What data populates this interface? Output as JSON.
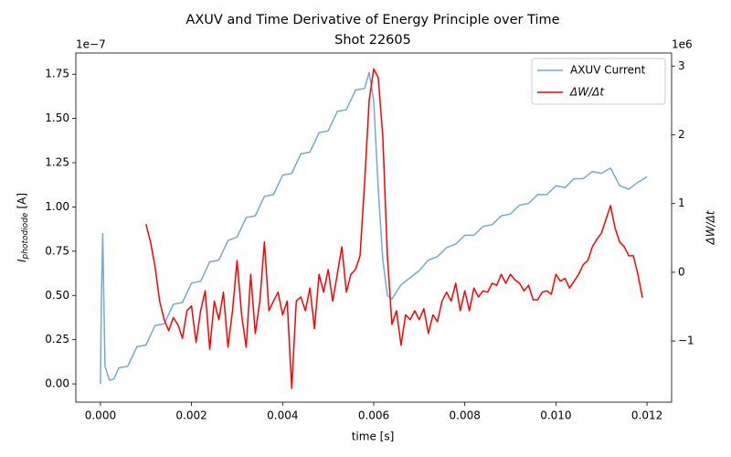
{
  "chart_data": {
    "type": "line",
    "title": "AXUV and Time Derivative of Energy Principle over Time",
    "subtitle": "Shot 22605",
    "xlabel": "time [s]",
    "ylabel": {
      "symbol": "I",
      "subscript": "photodiode",
      "unit": "[A]"
    },
    "y2label": "ΔW/Δt",
    "y_offset_label": "1e−7",
    "y2_offset_label": "1e6",
    "legend": "upper right",
    "xlim": [
      -0.00054,
      0.01254
    ],
    "xticks": [
      {
        "value": 0,
        "label": "0.000"
      },
      {
        "value": 0.002,
        "label": "0.002"
      },
      {
        "value": 0.004,
        "label": "0.004"
      },
      {
        "value": 0.006,
        "label": "0.006"
      },
      {
        "value": 0.008,
        "label": "0.008"
      },
      {
        "value": 0.01,
        "label": "0.010"
      },
      {
        "value": 0.012,
        "label": "0.012"
      }
    ],
    "ylim": [
      -0.103,
      1.87
    ],
    "yticks": [
      {
        "value": 0,
        "label": "0.00"
      },
      0.25,
      {
        "value": 0.5,
        "label": "0.50"
      },
      0.75,
      {
        "value": 1,
        "label": "1.00"
      },
      1.25,
      {
        "value": 1.5,
        "label": "1.50"
      },
      1.75
    ],
    "y2lim": [
      -1.89,
      3.19
    ],
    "y2ticks": [
      {
        "value": -1,
        "label": "−1"
      },
      0,
      1,
      2,
      3
    ],
    "series": [
      {
        "name": "AXUV Current",
        "color": "#73a9d4",
        "x": [
          0,
          2e-05,
          5e-05,
          0.0001,
          0.0002,
          0.0003,
          0.0004,
          0.0006,
          0.0008,
          0.001,
          0.0012,
          0.0014,
          0.0016,
          0.0018,
          0.002,
          0.0022,
          0.0024,
          0.0026,
          0.0028,
          0.003,
          0.0032,
          0.0034,
          0.0036,
          0.0038,
          0.004,
          0.0042,
          0.0044,
          0.0046,
          0.0048,
          0.005,
          0.0052,
          0.0054,
          0.0056,
          0.0058,
          0.0059,
          0.006,
          0.0061,
          0.0062,
          0.0063,
          0.0064,
          0.0066,
          0.0068,
          0.007,
          0.0072,
          0.0074,
          0.0076,
          0.0078,
          0.008,
          0.0082,
          0.0084,
          0.0086,
          0.0088,
          0.009,
          0.0092,
          0.0094,
          0.0096,
          0.0098,
          0.01,
          0.0102,
          0.0104,
          0.0106,
          0.0108,
          0.011,
          0.0112,
          0.0114,
          0.0116,
          0.0118,
          0.012
        ],
        "values": [
          0.0,
          0.47,
          0.85,
          0.1,
          0.02,
          0.03,
          0.09,
          0.1,
          0.21,
          0.22,
          0.33,
          0.34,
          0.45,
          0.46,
          0.57,
          0.58,
          0.69,
          0.7,
          0.81,
          0.83,
          0.94,
          0.95,
          1.06,
          1.07,
          1.18,
          1.19,
          1.3,
          1.31,
          1.42,
          1.43,
          1.54,
          1.55,
          1.66,
          1.67,
          1.76,
          1.6,
          1.1,
          0.7,
          0.5,
          0.48,
          0.56,
          0.6,
          0.64,
          0.7,
          0.72,
          0.77,
          0.79,
          0.84,
          0.84,
          0.89,
          0.9,
          0.95,
          0.96,
          1.01,
          1.02,
          1.07,
          1.07,
          1.12,
          1.11,
          1.16,
          1.16,
          1.2,
          1.19,
          1.22,
          1.12,
          1.1,
          1.14,
          1.17
        ]
      },
      {
        "name": "ΔW/Δt",
        "color": "#ff0000",
        "axis": "y2",
        "x": [
          0.001,
          0.0011,
          0.0012,
          0.0013,
          0.0014,
          0.0015,
          0.0016,
          0.0017,
          0.0018,
          0.0019,
          0.002,
          0.0021,
          0.0022,
          0.0023,
          0.0024,
          0.0025,
          0.0026,
          0.0027,
          0.0028,
          0.0029,
          0.003,
          0.0031,
          0.0032,
          0.0033,
          0.0034,
          0.0035,
          0.0036,
          0.0037,
          0.0038,
          0.0039,
          0.004,
          0.0041,
          0.0042,
          0.0043,
          0.0044,
          0.0045,
          0.0046,
          0.0047,
          0.0048,
          0.0049,
          0.005,
          0.0051,
          0.0052,
          0.0053,
          0.0054,
          0.0055,
          0.0056,
          0.0057,
          0.0058,
          0.0059,
          0.006,
          0.0061,
          0.0062,
          0.0063,
          0.0064,
          0.0065,
          0.0066,
          0.0067,
          0.0068,
          0.0069,
          0.007,
          0.0071,
          0.0072,
          0.0073,
          0.0074,
          0.0075,
          0.0076,
          0.0077,
          0.0078,
          0.0079,
          0.008,
          0.0081,
          0.0082,
          0.0083,
          0.0084,
          0.0085,
          0.0086,
          0.0087,
          0.0088,
          0.0089,
          0.009,
          0.0091,
          0.0092,
          0.0093,
          0.0094,
          0.0095,
          0.0096,
          0.0097,
          0.0098,
          0.0099,
          0.01,
          0.0101,
          0.0102,
          0.0103,
          0.0104,
          0.0105,
          0.0106,
          0.0107,
          0.0108,
          0.0109,
          0.011,
          0.0111,
          0.0112,
          0.0113,
          0.0114,
          0.0115,
          0.0116,
          0.0117,
          0.0118,
          0.0119
        ],
        "values": [
          0.7,
          0.44,
          0.08,
          -0.42,
          -0.69,
          -0.85,
          -0.66,
          -0.76,
          -0.96,
          -0.56,
          -0.49,
          -1.02,
          -0.56,
          -0.27,
          -1.12,
          -0.42,
          -0.69,
          -0.29,
          -1.09,
          -0.56,
          0.17,
          -0.62,
          -1.09,
          -0.03,
          -0.89,
          -0.42,
          0.44,
          -0.56,
          -0.42,
          -0.29,
          -0.62,
          -0.42,
          -1.69,
          -0.42,
          -0.36,
          -0.56,
          -0.23,
          -0.82,
          -0.03,
          -0.29,
          0.04,
          -0.42,
          -0.03,
          0.37,
          -0.29,
          -0.03,
          0.04,
          0.24,
          1.3,
          2.5,
          2.96,
          2.83,
          1.97,
          0.24,
          -0.76,
          -0.56,
          -1.06,
          -0.62,
          -0.69,
          -0.56,
          -0.69,
          -0.53,
          -0.89,
          -0.62,
          -0.72,
          -0.42,
          -0.29,
          -0.42,
          -0.16,
          -0.56,
          -0.27,
          -0.56,
          -0.23,
          -0.36,
          -0.27,
          -0.29,
          -0.16,
          -0.19,
          -0.03,
          -0.16,
          -0.03,
          -0.11,
          -0.16,
          -0.27,
          -0.19,
          -0.4,
          -0.4,
          -0.29,
          -0.27,
          -0.32,
          -0.03,
          -0.13,
          -0.09,
          -0.23,
          -0.13,
          -0.03,
          0.11,
          0.17,
          0.37,
          0.48,
          0.57,
          0.77,
          0.97,
          0.64,
          0.44,
          0.37,
          0.24,
          0.24,
          -0.03,
          -0.37
        ]
      }
    ]
  }
}
